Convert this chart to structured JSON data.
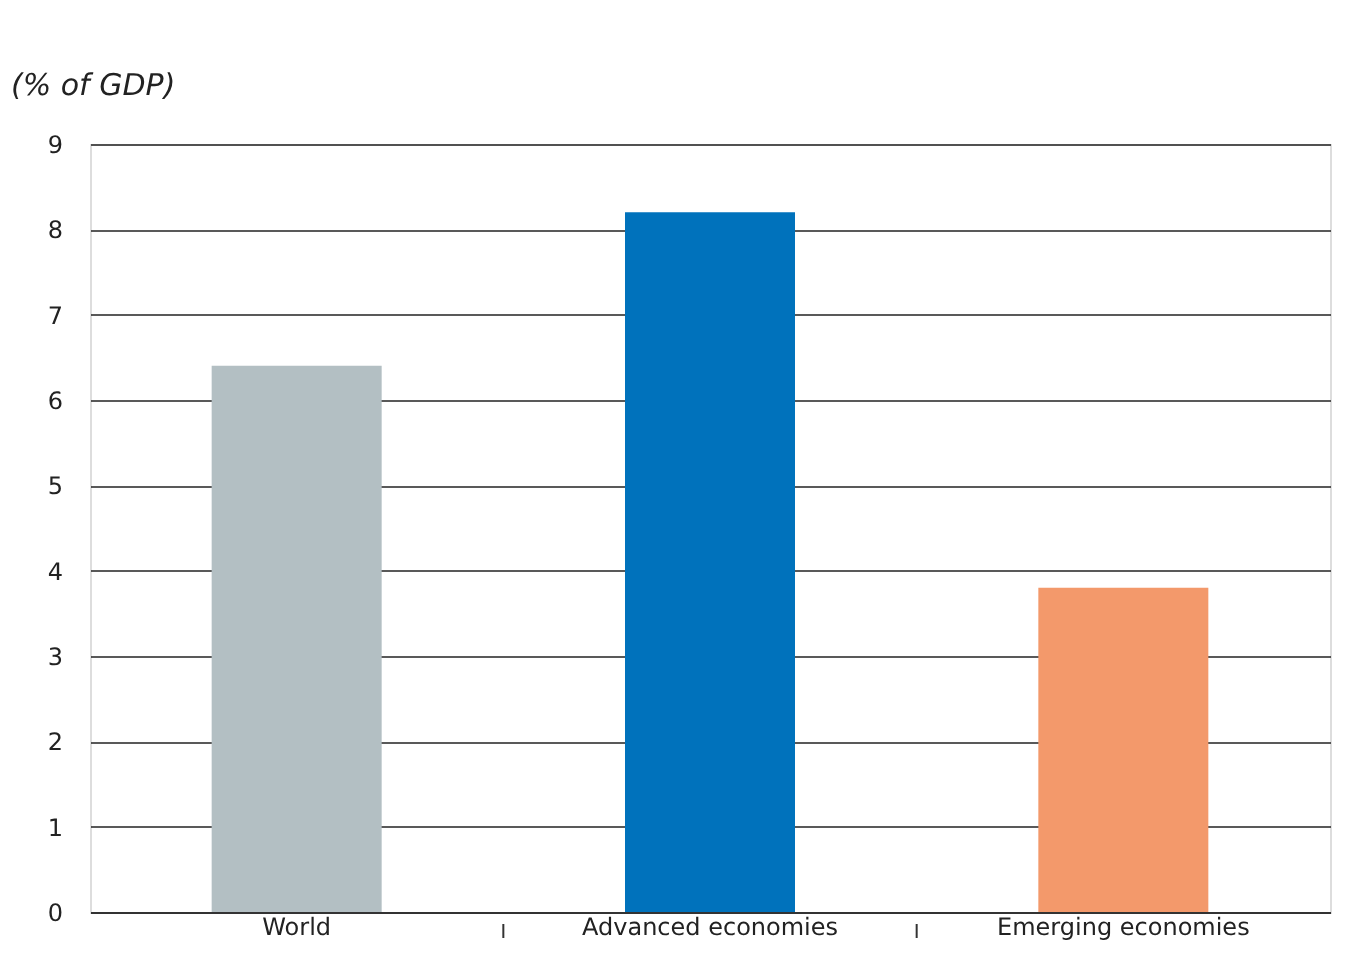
{
  "chart_data": {
    "type": "bar",
    "ylabel": "(% of GDP)",
    "categories": [
      "World",
      "Advanced economies",
      "Emerging economies"
    ],
    "values": [
      6.4,
      8.2,
      3.8
    ],
    "colors": [
      "#b3bfc3",
      "#0072bc",
      "#f3996b"
    ],
    "ylim": [
      0,
      9
    ],
    "yticks": [
      0,
      1,
      2,
      3,
      4,
      5,
      6,
      7,
      8,
      9
    ],
    "grid": "y"
  }
}
